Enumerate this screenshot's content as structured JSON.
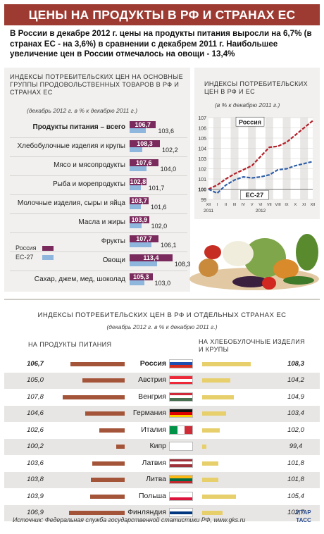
{
  "title": "ЦЕНЫ НА ПРОДУКТЫ В РФ И СТРАНАХ ЕС",
  "lead": "В России в декабре 2012 г. цены на продукты питания выросли на 6,7% (в странах ЕС - на 3,6%) в сравнении с декабрем 2011 г. Наибольшее увеличение цен в России отмечалось на овощи - 13,4%",
  "colors": {
    "title_bar": "#9d3b32",
    "russia": "#7a2a5c",
    "eu": "#8fb6dc",
    "country_bar_food": "#a45539",
    "country_bar_bread": "#e7cf6b"
  },
  "chart_data": [
    {
      "type": "bar",
      "title": "ИНДЕКСЫ ПОТРЕБИТЕЛЬСКИХ ЦЕН НА ОСНОВНЫЕ ГРУППЫ ПРОДОВОЛЬСТВЕННЫХ ТОВАРОВ В РФ И СТРАНАХ ЕС",
      "subtitle": "(декабрь 2012 г. в % к декабрю 2011 г.)",
      "categories": [
        "Продукты питания – всего",
        "Хлебобулочные изделия и крупы",
        "Мясо и мясопродукты",
        "Рыба и морепродукты",
        "Молочные изделия, сыры и яйца",
        "Масла и жиры",
        "Фрукты",
        "Овощи",
        "Сахар, джем, мед, шоколад"
      ],
      "series": [
        {
          "name": "Россия",
          "values": [
            106.7,
            108.3,
            107.6,
            102.8,
            103.7,
            103.9,
            107.7,
            113.4,
            105.3
          ]
        },
        {
          "name": "ЕС-27",
          "values": [
            103.6,
            102.2,
            104.0,
            101.7,
            101.6,
            102.0,
            106.1,
            108.3,
            103.0
          ]
        }
      ]
    },
    {
      "type": "line",
      "title": "ИНДЕКСЫ ПОТРЕБИТЕЛЬСКИХ ЦЕН В РФ И ЕС",
      "subtitle": "(в % к декабрю 2011 г.)",
      "x": [
        "XII",
        "I",
        "II",
        "III",
        "IV",
        "V",
        "VI",
        "VII",
        "VIII",
        "IX",
        "X",
        "XI",
        "XII"
      ],
      "year_labels": [
        "2011",
        "2012"
      ],
      "yticks": [
        99,
        100,
        101,
        102,
        103,
        104,
        105,
        106,
        107
      ],
      "ylim": [
        99,
        107
      ],
      "series": [
        {
          "name": "Россия",
          "values": [
            100.0,
            100.4,
            101.0,
            101.5,
            101.9,
            102.3,
            103.2,
            104.1,
            104.2,
            104.6,
            105.3,
            106.0,
            106.7
          ]
        },
        {
          "name": "ЕС-27",
          "values": [
            100.0,
            99.6,
            100.4,
            100.9,
            101.2,
            101.1,
            101.2,
            101.4,
            101.9,
            102.0,
            102.3,
            102.5,
            102.7
          ]
        }
      ]
    },
    {
      "type": "bar",
      "title": "ИНДЕКСЫ ПОТРЕБИТЕЛЬСКИХ ЦЕН В РФ И ОТДЕЛЬНЫХ СТРАНАХ ЕС",
      "subtitle": "(декабрь 2012 г. в % к декабрю 2011 г.)",
      "left_header": "НА ПРОДУКТЫ ПИТАНИЯ",
      "right_header": "НА ХЛЕБОБУЛОЧНЫЕ ИЗДЕЛИЯ И КРУПЫ",
      "categories": [
        "Россия",
        "Австрия",
        "Венгрия",
        "Германия",
        "Италия",
        "Кипр",
        "Латвия",
        "Литва",
        "Польша",
        "Финляндия"
      ],
      "series": [
        {
          "name": "НА ПРОДУКТЫ ПИТАНИЯ",
          "values": [
            106.7,
            105.0,
            107.8,
            104.6,
            102.6,
            100.2,
            103.6,
            103.8,
            103.9,
            106.9
          ]
        },
        {
          "name": "НА ХЛЕБОБУЛОЧНЫЕ ИЗДЕЛИЯ И КРУПЫ",
          "values": [
            108.3,
            104.2,
            104.9,
            103.4,
            102.0,
            99.4,
            101.8,
            101.8,
            105.4,
            102.7
          ]
        }
      ]
    }
  ],
  "legend": {
    "russia": "Россия",
    "eu": "ЕС-27"
  },
  "flags": [
    [
      "#ffffff",
      "#1d4fb0",
      "#d52b1e"
    ],
    [
      "#ed2939",
      "#ffffff",
      "#ed2939"
    ],
    [
      "#ce2939",
      "#ffffff",
      "#477050"
    ],
    [
      "#111111",
      "#dd0000",
      "#ffce00"
    ],
    [
      "v",
      "#009246",
      "#ffffff",
      "#ce2b37"
    ],
    [
      "#ffffff",
      "#ffffff",
      "#ffffff"
    ],
    [
      "#9e3039",
      "#ffffff",
      "#9e3039"
    ],
    [
      "#fdb913",
      "#006a44",
      "#c1272d"
    ],
    [
      "#ffffff",
      "#ffffff",
      "#dc143c"
    ],
    [
      "#ffffff",
      "#003580",
      "#ffffff"
    ]
  ],
  "source": "Источник: Федеральная служба государственной статистики РФ, www.gks.ru",
  "logo": "ИТАР ТАСС"
}
